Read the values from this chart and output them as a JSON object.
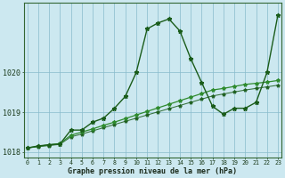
{
  "xlabel": "Graphe pression niveau de la mer (hPa)",
  "background_color": "#cce8f0",
  "grid_color": "#88bbcc",
  "line_color1": "#1a5c1a",
  "line_color2": "#2e8b2e",
  "x": [
    0,
    1,
    2,
    3,
    4,
    5,
    6,
    7,
    8,
    9,
    10,
    11,
    12,
    13,
    14,
    15,
    16,
    17,
    18,
    19,
    20,
    21,
    22,
    23
  ],
  "line1": [
    1018.1,
    1018.15,
    1018.18,
    1018.2,
    1018.55,
    1018.55,
    1018.75,
    1018.85,
    1019.1,
    1019.4,
    1020.0,
    1021.1,
    1021.25,
    1021.35,
    1021.05,
    1020.35,
    1019.75,
    1019.15,
    1018.95,
    1019.1,
    1019.1,
    1019.25,
    1020.0,
    1021.45
  ],
  "line2": [
    1018.1,
    1018.14,
    1018.18,
    1018.21,
    1018.42,
    1018.5,
    1018.58,
    1018.67,
    1018.75,
    1018.84,
    1018.93,
    1019.02,
    1019.11,
    1019.2,
    1019.29,
    1019.38,
    1019.47,
    1019.56,
    1019.6,
    1019.65,
    1019.7,
    1019.73,
    1019.76,
    1019.8
  ],
  "line3": [
    1018.1,
    1018.13,
    1018.16,
    1018.19,
    1018.38,
    1018.45,
    1018.53,
    1018.61,
    1018.69,
    1018.77,
    1018.85,
    1018.93,
    1019.01,
    1019.09,
    1019.17,
    1019.25,
    1019.33,
    1019.41,
    1019.46,
    1019.51,
    1019.56,
    1019.6,
    1019.64,
    1019.68
  ],
  "ylim": [
    1017.85,
    1021.75
  ],
  "yticks": [
    1018,
    1019,
    1020
  ],
  "xticks": [
    0,
    1,
    2,
    3,
    4,
    5,
    6,
    7,
    8,
    9,
    10,
    11,
    12,
    13,
    14,
    15,
    16,
    17,
    18,
    19,
    20,
    21,
    22,
    23
  ],
  "markersize": 3.5,
  "linewidth": 1.0
}
